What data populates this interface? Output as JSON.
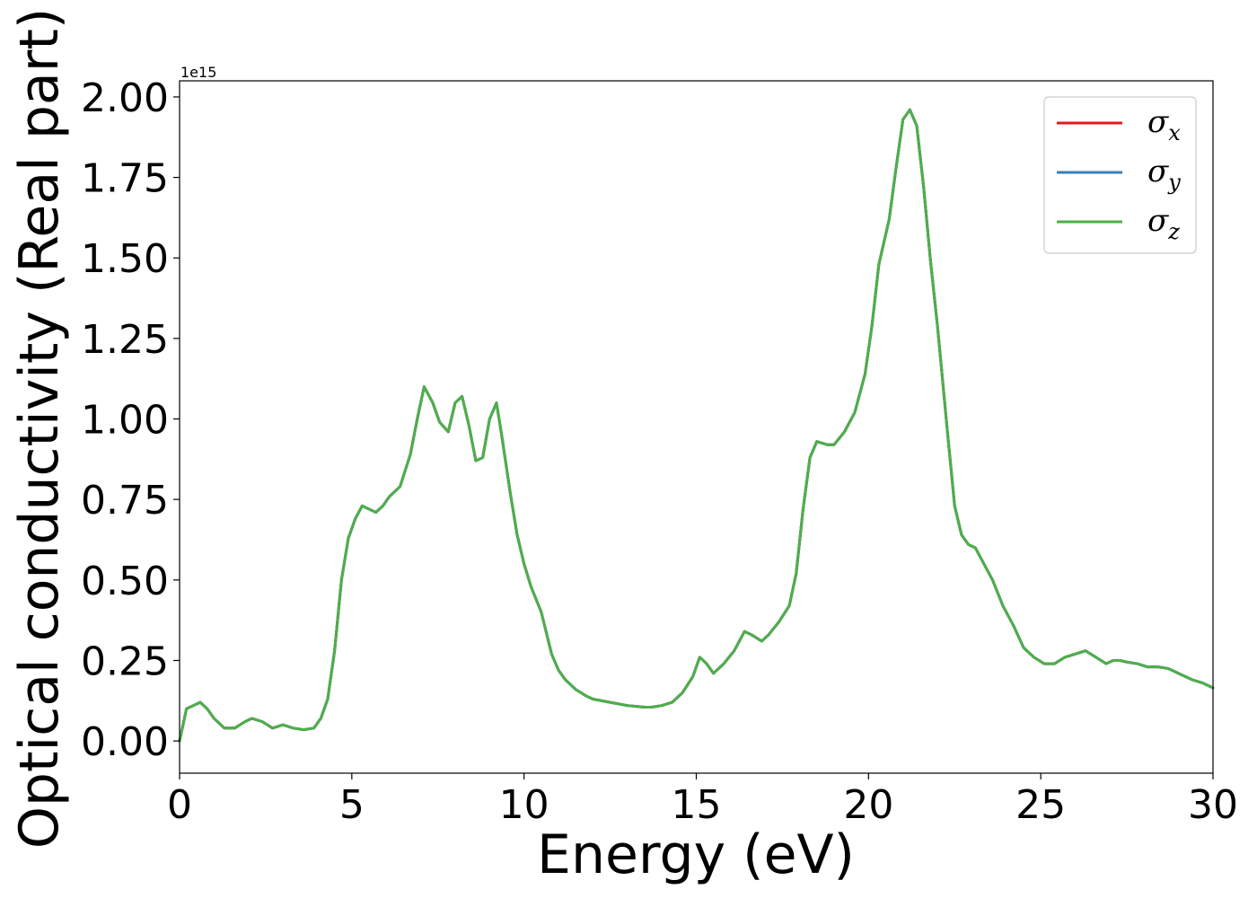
{
  "chart_data": {
    "type": "line",
    "title": "",
    "xlabel": "Energy (eV)",
    "ylabel": "Optical conductivity (Real part)",
    "y_offset_label": "1e15",
    "xlim": [
      0,
      30
    ],
    "ylim": [
      -0.1,
      2.05
    ],
    "xticks": [
      0,
      5,
      10,
      15,
      20,
      25,
      30
    ],
    "xtick_labels": [
      "0",
      "5",
      "10",
      "15",
      "20",
      "25",
      "30"
    ],
    "yticks": [
      0.0,
      0.25,
      0.5,
      0.75,
      1.0,
      1.25,
      1.5,
      1.75,
      2.0
    ],
    "ytick_labels": [
      "0.00",
      "0.25",
      "0.50",
      "0.75",
      "1.00",
      "1.25",
      "1.50",
      "1.75",
      "2.00"
    ],
    "grid": false,
    "legend_position": "top-right",
    "x": [
      0,
      0.2,
      0.4,
      0.6,
      0.8,
      1.0,
      1.3,
      1.6,
      1.9,
      2.1,
      2.4,
      2.7,
      3.0,
      3.3,
      3.6,
      3.9,
      4.1,
      4.3,
      4.5,
      4.7,
      4.9,
      5.1,
      5.3,
      5.5,
      5.7,
      5.9,
      6.1,
      6.4,
      6.7,
      6.9,
      7.1,
      7.35,
      7.55,
      7.8,
      8.0,
      8.2,
      8.4,
      8.6,
      8.8,
      9.0,
      9.2,
      9.35,
      9.6,
      9.8,
      10.0,
      10.2,
      10.5,
      10.8,
      11.0,
      11.2,
      11.5,
      11.8,
      12.0,
      12.5,
      13.0,
      13.5,
      13.7,
      14.0,
      14.3,
      14.6,
      14.9,
      15.1,
      15.3,
      15.5,
      15.8,
      16.1,
      16.4,
      16.6,
      16.9,
      17.1,
      17.4,
      17.7,
      17.9,
      18.1,
      18.3,
      18.5,
      18.8,
      19.0,
      19.3,
      19.6,
      19.9,
      20.1,
      20.3,
      20.6,
      20.8,
      21.0,
      21.2,
      21.4,
      21.6,
      21.8,
      22.0,
      22.3,
      22.5,
      22.7,
      22.9,
      23.1,
      23.3,
      23.6,
      23.9,
      24.2,
      24.5,
      24.8,
      25.1,
      25.4,
      25.7,
      26.0,
      26.3,
      26.6,
      26.9,
      27.1,
      27.3,
      27.5,
      27.8,
      28.1,
      28.4,
      28.7,
      29.0,
      29.4,
      29.7,
      30.0
    ],
    "series": [
      {
        "name": "σx",
        "color": "#e41a1c",
        "y": [
          0.0,
          0.1,
          0.11,
          0.12,
          0.1,
          0.07,
          0.04,
          0.04,
          0.06,
          0.07,
          0.06,
          0.04,
          0.05,
          0.04,
          0.035,
          0.04,
          0.07,
          0.13,
          0.28,
          0.5,
          0.63,
          0.69,
          0.73,
          0.72,
          0.71,
          0.73,
          0.76,
          0.79,
          0.89,
          1.0,
          1.1,
          1.05,
          0.99,
          0.96,
          1.05,
          1.07,
          0.98,
          0.87,
          0.88,
          1.0,
          1.05,
          0.95,
          0.77,
          0.64,
          0.55,
          0.48,
          0.4,
          0.27,
          0.22,
          0.19,
          0.16,
          0.14,
          0.13,
          0.12,
          0.11,
          0.105,
          0.105,
          0.11,
          0.12,
          0.15,
          0.2,
          0.26,
          0.24,
          0.21,
          0.24,
          0.28,
          0.34,
          0.33,
          0.31,
          0.33,
          0.37,
          0.42,
          0.52,
          0.72,
          0.88,
          0.93,
          0.92,
          0.92,
          0.96,
          1.02,
          1.14,
          1.29,
          1.48,
          1.62,
          1.78,
          1.93,
          1.96,
          1.91,
          1.72,
          1.49,
          1.29,
          0.95,
          0.73,
          0.64,
          0.61,
          0.6,
          0.56,
          0.5,
          0.42,
          0.36,
          0.29,
          0.26,
          0.24,
          0.24,
          0.26,
          0.27,
          0.28,
          0.26,
          0.24,
          0.25,
          0.25,
          0.245,
          0.24,
          0.23,
          0.23,
          0.225,
          0.21,
          0.19,
          0.18,
          0.165
        ]
      },
      {
        "name": "σy",
        "color": "#377eb8",
        "y": [
          0.0,
          0.1,
          0.11,
          0.12,
          0.1,
          0.07,
          0.04,
          0.04,
          0.06,
          0.07,
          0.06,
          0.04,
          0.05,
          0.04,
          0.035,
          0.04,
          0.07,
          0.13,
          0.28,
          0.5,
          0.63,
          0.69,
          0.73,
          0.72,
          0.71,
          0.73,
          0.76,
          0.79,
          0.89,
          1.0,
          1.1,
          1.05,
          0.99,
          0.96,
          1.05,
          1.07,
          0.98,
          0.87,
          0.88,
          1.0,
          1.05,
          0.95,
          0.77,
          0.64,
          0.55,
          0.48,
          0.4,
          0.27,
          0.22,
          0.19,
          0.16,
          0.14,
          0.13,
          0.12,
          0.11,
          0.105,
          0.105,
          0.11,
          0.12,
          0.15,
          0.2,
          0.26,
          0.24,
          0.21,
          0.24,
          0.28,
          0.34,
          0.33,
          0.31,
          0.33,
          0.37,
          0.42,
          0.52,
          0.72,
          0.88,
          0.93,
          0.92,
          0.92,
          0.96,
          1.02,
          1.14,
          1.29,
          1.48,
          1.62,
          1.78,
          1.93,
          1.96,
          1.91,
          1.72,
          1.49,
          1.29,
          0.95,
          0.73,
          0.64,
          0.61,
          0.6,
          0.56,
          0.5,
          0.42,
          0.36,
          0.29,
          0.26,
          0.24,
          0.24,
          0.26,
          0.27,
          0.28,
          0.26,
          0.24,
          0.25,
          0.25,
          0.245,
          0.24,
          0.23,
          0.23,
          0.225,
          0.21,
          0.19,
          0.18,
          0.165
        ]
      },
      {
        "name": "σz",
        "color": "#4daf4a",
        "y": [
          0.0,
          0.1,
          0.11,
          0.12,
          0.1,
          0.07,
          0.04,
          0.04,
          0.06,
          0.07,
          0.06,
          0.04,
          0.05,
          0.04,
          0.035,
          0.04,
          0.07,
          0.13,
          0.28,
          0.5,
          0.63,
          0.69,
          0.73,
          0.72,
          0.71,
          0.73,
          0.76,
          0.79,
          0.89,
          1.0,
          1.1,
          1.05,
          0.99,
          0.96,
          1.05,
          1.07,
          0.98,
          0.87,
          0.88,
          1.0,
          1.05,
          0.95,
          0.77,
          0.64,
          0.55,
          0.48,
          0.4,
          0.27,
          0.22,
          0.19,
          0.16,
          0.14,
          0.13,
          0.12,
          0.11,
          0.105,
          0.105,
          0.11,
          0.12,
          0.15,
          0.2,
          0.26,
          0.24,
          0.21,
          0.24,
          0.28,
          0.34,
          0.33,
          0.31,
          0.33,
          0.37,
          0.42,
          0.52,
          0.72,
          0.88,
          0.93,
          0.92,
          0.92,
          0.96,
          1.02,
          1.14,
          1.29,
          1.48,
          1.62,
          1.78,
          1.93,
          1.96,
          1.91,
          1.72,
          1.49,
          1.29,
          0.95,
          0.73,
          0.64,
          0.61,
          0.6,
          0.56,
          0.5,
          0.42,
          0.36,
          0.29,
          0.26,
          0.24,
          0.24,
          0.26,
          0.27,
          0.28,
          0.26,
          0.24,
          0.25,
          0.25,
          0.245,
          0.24,
          0.23,
          0.23,
          0.225,
          0.21,
          0.19,
          0.18,
          0.165
        ]
      }
    ]
  },
  "legend": {
    "items": [
      {
        "symbol": "σ",
        "sub": "x"
      },
      {
        "symbol": "σ",
        "sub": "y"
      },
      {
        "symbol": "σ",
        "sub": "z"
      }
    ]
  }
}
